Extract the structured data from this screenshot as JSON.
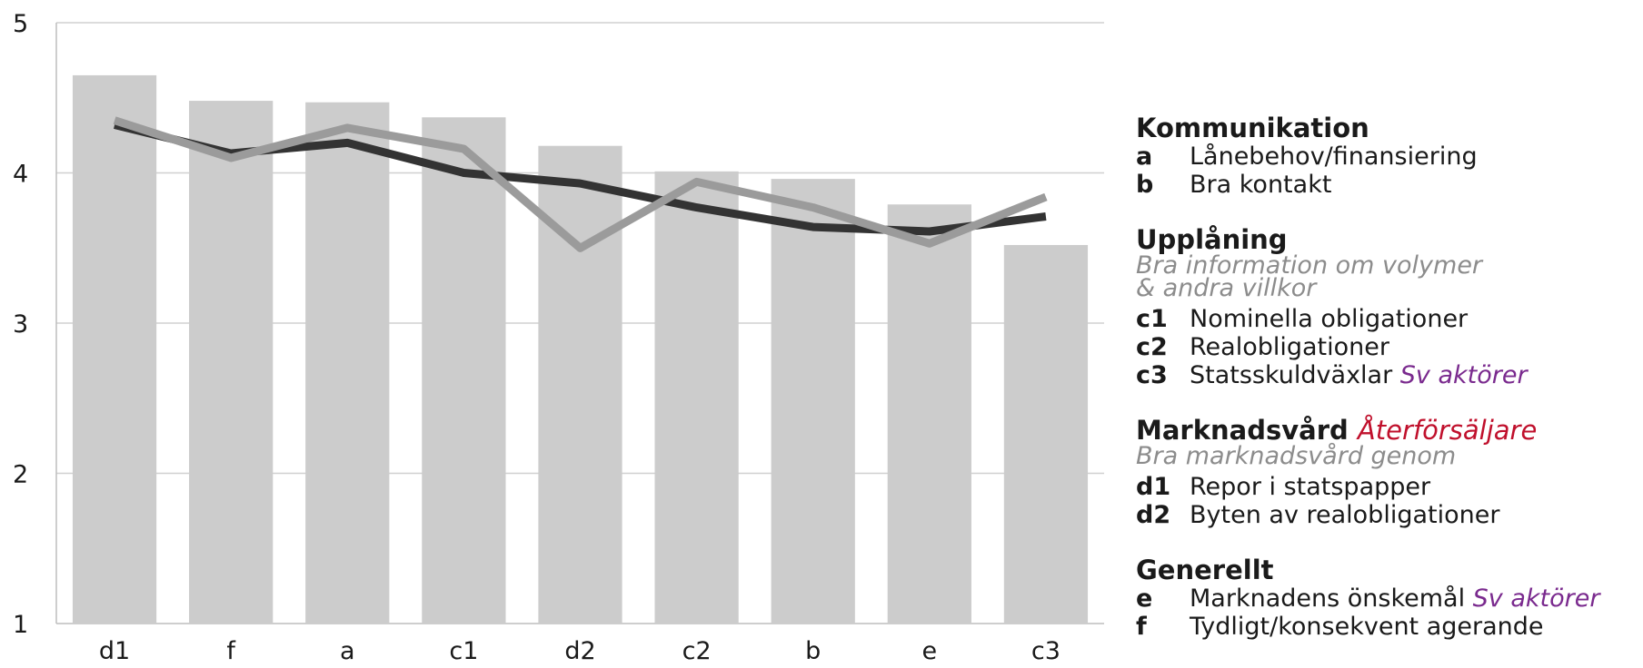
{
  "chart_data": {
    "type": "bar",
    "categories": [
      "d1",
      "f",
      "a",
      "c1",
      "d2",
      "c2",
      "b",
      "e",
      "c3"
    ],
    "ylim": [
      1,
      5
    ],
    "yticks": [
      "1",
      "2",
      "3",
      "4",
      "5"
    ],
    "grid": true,
    "series": [
      {
        "type": "bar",
        "color": "#cccccc",
        "values": [
          4.65,
          4.48,
          4.47,
          4.37,
          4.18,
          4.01,
          3.96,
          3.79,
          3.52
        ]
      },
      {
        "type": "line",
        "color": "#333333",
        "values": [
          4.32,
          4.13,
          4.2,
          4.0,
          3.93,
          3.77,
          3.64,
          3.61,
          3.71
        ]
      },
      {
        "type": "line",
        "color": "#9b9b9b",
        "values": [
          4.35,
          4.1,
          4.3,
          4.16,
          3.5,
          3.94,
          3.77,
          3.53,
          3.84
        ]
      }
    ]
  },
  "legend": {
    "groups": [
      {
        "heading": "Kommunikation",
        "items": [
          {
            "code": "a",
            "label": "Lånebehov/finansiering"
          },
          {
            "code": "b",
            "label": "Bra kontakt"
          }
        ]
      },
      {
        "heading": "Upplåning",
        "subtitle_line1": "Bra information om volymer",
        "subtitle_line2": "& andra villkor",
        "items": [
          {
            "code": "c1",
            "label": "Nominella obligationer"
          },
          {
            "code": "c2",
            "label": "Realobligationer"
          },
          {
            "code": "c3",
            "label": "Statsskuldväxlar",
            "tag": "Sv aktörer"
          }
        ]
      },
      {
        "heading": "Marknadsvård",
        "heading_tag": "Återförsäljare",
        "subtitle_line1": "Bra marknadsvård genom",
        "items": [
          {
            "code": "d1",
            "label": "Repor i statspapper"
          },
          {
            "code": "d2",
            "label": "Byten av realobligationer"
          }
        ]
      },
      {
        "heading": "Generellt",
        "items": [
          {
            "code": "e",
            "label": "Marknadens önskemål",
            "tag": "Sv aktörer"
          },
          {
            "code": "f",
            "label": "Tydligt/konsekvent agerande"
          }
        ]
      }
    ],
    "colors": {
      "tag_purple": "#7a2a8e",
      "tag_red": "#c0102c",
      "subtitle": "#8c8c8c"
    }
  }
}
